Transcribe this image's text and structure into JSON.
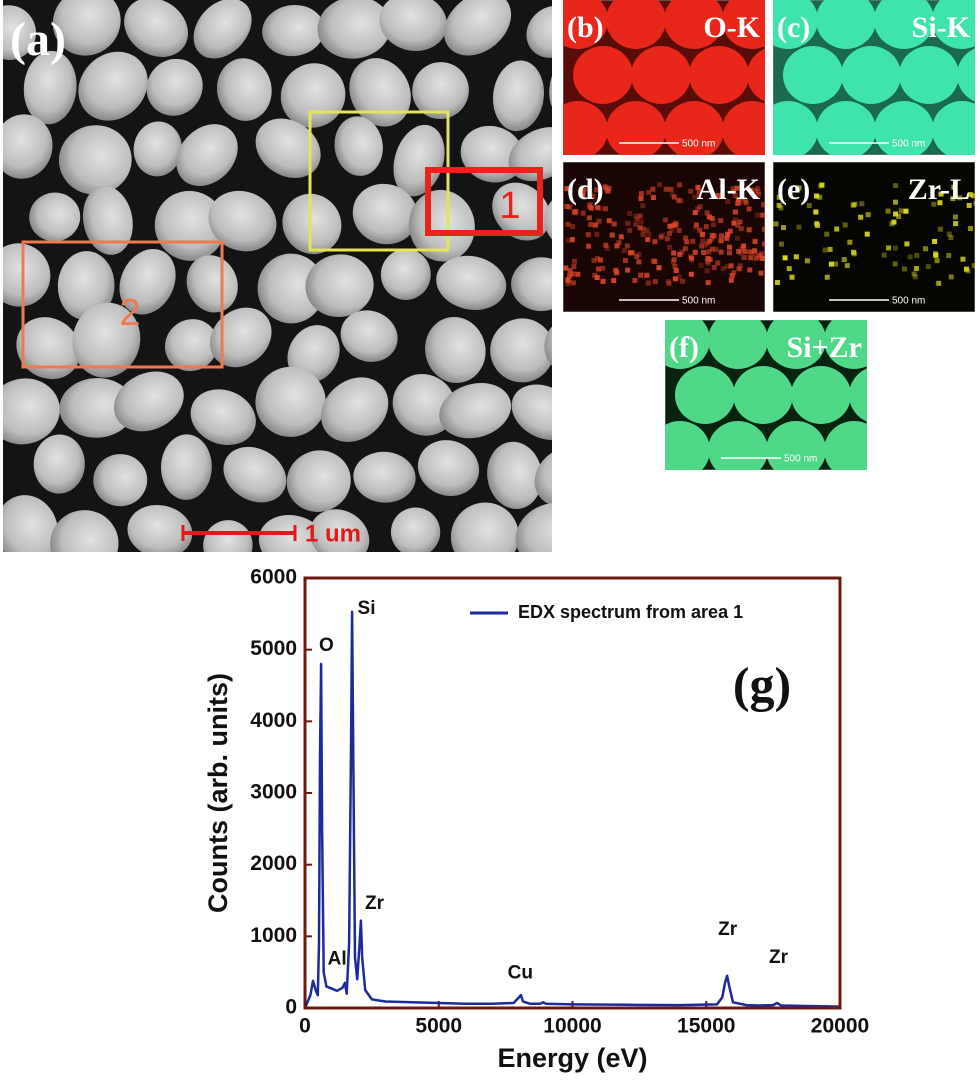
{
  "micrographs": [
    {
      "label": "(a)",
      "regions": [
        "1",
        "2"
      ],
      "scale_bar": "1 um"
    },
    {
      "label": "(b)",
      "element": "O-K",
      "scale_bar": "500 nm"
    },
    {
      "label": "(c)",
      "element": "Si-K",
      "scale_bar": "500 nm"
    },
    {
      "label": "(d)",
      "element": "Al-K",
      "scale_bar": "500 nm"
    },
    {
      "label": "(e)",
      "element": "Zr-L",
      "scale_bar": "500 nm"
    },
    {
      "label": "(f)",
      "element": "Si+Zr",
      "scale_bar": "500 nm"
    }
  ],
  "chart_data": {
    "type": "line",
    "annotation": "(g)",
    "x_label": "Energy (eV)",
    "y_label": "Counts (arb. units)",
    "x": [
      0,
      200,
      300,
      400,
      480,
      525,
      560,
      600,
      640,
      700,
      800,
      1000,
      1200,
      1400,
      1490,
      1560,
      1650,
      1720,
      1760,
      1800,
      1870,
      1950,
      2040,
      2090,
      2140,
      2250,
      2500,
      3000,
      4000,
      5000,
      6000,
      7000,
      7800,
      8000,
      8070,
      8150,
      8400,
      8800,
      8900,
      9000,
      10000,
      12000,
      14000,
      15400,
      15600,
      15700,
      15780,
      15860,
      16000,
      16500,
      17000,
      17500,
      17650,
      17800,
      18500,
      20000
    ],
    "series": [
      {
        "name": "EDX spectrum from area 1",
        "color": "#1c2a9e",
        "values": [
          0,
          180,
          380,
          250,
          180,
          900,
          3500,
          4800,
          2500,
          500,
          300,
          270,
          240,
          280,
          350,
          200,
          900,
          3600,
          5530,
          3800,
          700,
          400,
          900,
          1220,
          700,
          250,
          120,
          90,
          80,
          70,
          60,
          60,
          70,
          150,
          180,
          90,
          60,
          60,
          80,
          60,
          50,
          45,
          40,
          50,
          150,
          350,
          450,
          300,
          80,
          40,
          35,
          40,
          70,
          35,
          30,
          20
        ]
      }
    ],
    "peak_labels": [
      {
        "text": "O",
        "x": 800,
        "y": 5050
      },
      {
        "text": "Si",
        "x": 2300,
        "y": 5570
      },
      {
        "text": "Zr",
        "x": 2600,
        "y": 1450
      },
      {
        "text": "Al",
        "x": 1200,
        "y": 680
      },
      {
        "text": "Cu",
        "x": 8050,
        "y": 480
      },
      {
        "text": "Zr",
        "x": 15800,
        "y": 1090
      },
      {
        "text": "Zr",
        "x": 17700,
        "y": 700
      }
    ],
    "xlim": [
      0,
      20000
    ],
    "xticks": [
      0,
      5000,
      10000,
      15000,
      20000
    ],
    "ylim": [
      0,
      6000
    ],
    "yticks": [
      0,
      1000,
      2000,
      3000,
      4000,
      5000,
      6000
    ],
    "frame_color": "#6b1a10"
  }
}
